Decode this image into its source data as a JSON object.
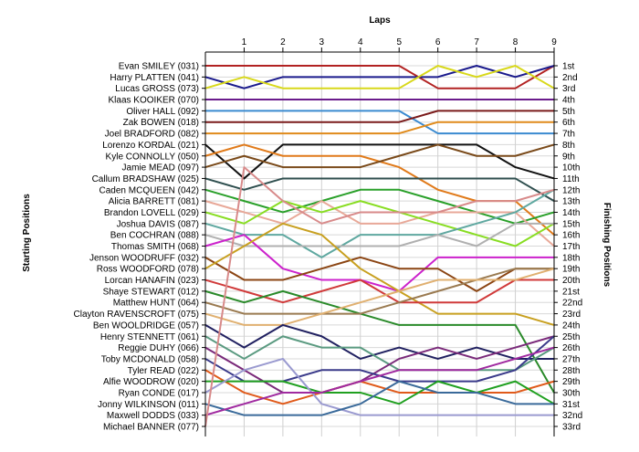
{
  "chart_data": {
    "type": "line",
    "title": "",
    "x_axis_title": "Laps",
    "y_axis_left_title": "Starting Positions",
    "y_axis_right_title": "Finishing Positions",
    "laps": [
      "1",
      "2",
      "3",
      "4",
      "5",
      "6",
      "7",
      "8",
      "9"
    ],
    "x_range": [
      0,
      9
    ],
    "position_range": [
      1,
      33
    ],
    "grid": true,
    "finishing_labels": [
      "1st",
      "2nd",
      "3rd",
      "4th",
      "5th",
      "6th",
      "7th",
      "8th",
      "9th",
      "10th",
      "11th",
      "12th",
      "13th",
      "14th",
      "15th",
      "16th",
      "17th",
      "18th",
      "19th",
      "20th",
      "21st",
      "22nd",
      "23rd",
      "24th",
      "25th",
      "26th",
      "27th",
      "28th",
      "29th",
      "30th",
      "31st",
      "32nd",
      "33rd"
    ],
    "series": [
      {
        "name": "Evan SMILEY (031)",
        "color": "#b22222",
        "positions": [
          1,
          1,
          1,
          1,
          1,
          1,
          3,
          3,
          3,
          1
        ]
      },
      {
        "name": "Harry PLATTEN (041)",
        "color": "#1a1a8c",
        "positions": [
          2,
          3,
          2,
          2,
          2,
          2,
          2,
          1,
          2,
          1
        ]
      },
      {
        "name": "Lucas GROSS (073)",
        "color": "#d8d81a",
        "positions": [
          3,
          2,
          3,
          3,
          3,
          3,
          1,
          2,
          1,
          3
        ]
      },
      {
        "name": "Klaas KOOIKER (070)",
        "color": "#6a1b8c",
        "positions": [
          4,
          4,
          4,
          4,
          4,
          4,
          4,
          4,
          4,
          4
        ]
      },
      {
        "name": "Oliver HALL (092)",
        "color": "#3a8ad0",
        "positions": [
          5,
          5,
          5,
          5,
          5,
          5,
          7,
          7,
          7,
          7
        ]
      },
      {
        "name": "Zak BOWEN (018)",
        "color": "#7a1a1a",
        "positions": [
          6,
          6,
          6,
          6,
          6,
          6,
          5,
          5,
          5,
          5
        ]
      },
      {
        "name": "Joel BRADFORD (082)",
        "color": "#e08a1a",
        "positions": [
          7,
          7,
          7,
          7,
          7,
          7,
          6,
          6,
          6,
          6
        ]
      },
      {
        "name": "Lorenzo KORDAL (021)",
        "color": "#111111",
        "positions": [
          8,
          11,
          8,
          8,
          8,
          8,
          8,
          8,
          10,
          11
        ]
      },
      {
        "name": "Kyle CONNOLLY (050)",
        "color": "#e07a1a",
        "positions": [
          9,
          8,
          9,
          9,
          9,
          10,
          12,
          13,
          13,
          16
        ]
      },
      {
        "name": "Jamie MEAD (097)",
        "color": "#7a4a1a",
        "positions": [
          10,
          9,
          10,
          10,
          10,
          9,
          8,
          9,
          9,
          8
        ]
      },
      {
        "name": "Callum BRADSHAW (025)",
        "color": "#2f4f4f",
        "positions": [
          11,
          12,
          11,
          11,
          11,
          11,
          11,
          11,
          11,
          13
        ]
      },
      {
        "name": "Caden MCQUEEN (042)",
        "color": "#2aa02a",
        "positions": [
          12,
          13,
          14,
          13,
          12,
          12,
          13,
          14,
          15,
          14
        ]
      },
      {
        "name": "Alicia BARRETT (081)",
        "color": "#e8a898",
        "positions": [
          13,
          14,
          15,
          13,
          15,
          15,
          14,
          14,
          14,
          17
        ]
      },
      {
        "name": "Brandon LOVELL (029)",
        "color": "#88dd22",
        "positions": [
          14,
          15,
          13,
          14,
          13,
          14,
          15,
          16,
          17,
          15
        ]
      },
      {
        "name": "Joshua DAVIS (087)",
        "color": "#5fa8a0",
        "positions": [
          15,
          16,
          16,
          18,
          16,
          16,
          16,
          15,
          14,
          12
        ]
      },
      {
        "name": "Ben COCHRAN (088)",
        "color": "#b0b0b0",
        "positions": [
          16,
          17,
          17,
          17,
          17,
          17,
          16,
          17,
          15,
          15
        ]
      },
      {
        "name": "Thomas SMITH (068)",
        "color": "#cc22cc",
        "positions": [
          17,
          16,
          19,
          20,
          20,
          21,
          18,
          18,
          18,
          18
        ]
      },
      {
        "name": "Jenson WOODRUFF (032)",
        "color": "#8b4513",
        "positions": [
          18,
          20,
          20,
          19,
          18,
          19,
          19,
          21,
          19,
          19
        ]
      },
      {
        "name": "Ross WOODFORD (078)",
        "color": "#c8a020",
        "positions": [
          19,
          17,
          15,
          16,
          19,
          21,
          23,
          23,
          23,
          24
        ]
      },
      {
        "name": "Lorcan HANAFIN (023)",
        "color": "#d03a3a",
        "positions": [
          20,
          21,
          22,
          21,
          20,
          22,
          22,
          22,
          20,
          20
        ]
      },
      {
        "name": "Shaye STEWART (012)",
        "color": "#2a8a2a",
        "positions": [
          21,
          22,
          21,
          22,
          23,
          24,
          24,
          24,
          24,
          30
        ]
      },
      {
        "name": "Matthew HUNT (064)",
        "color": "#9a7a50",
        "positions": [
          22,
          23,
          23,
          23,
          23,
          22,
          21,
          20,
          19,
          19
        ]
      },
      {
        "name": "Clayton RAVENSCROFT (075)",
        "color": "#e0b070",
        "positions": [
          23,
          24,
          24,
          23,
          22,
          21,
          20,
          20,
          20,
          19
        ]
      },
      {
        "name": "Ben WOOLDRIDGE (057)",
        "color": "#202060",
        "positions": [
          24,
          26,
          24,
          25,
          27,
          26,
          27,
          26,
          27,
          27
        ]
      },
      {
        "name": "Henry STENNETT (061)",
        "color": "#5a9a80",
        "positions": [
          25,
          27,
          25,
          26,
          26,
          28,
          28,
          28,
          28,
          26
        ]
      },
      {
        "name": "Reggie DUHY (066)",
        "color": "#7a2a7a",
        "positions": [
          26,
          28,
          30,
          30,
          29,
          27,
          26,
          27,
          26,
          25
        ]
      },
      {
        "name": "Toby MCDONALD (058)",
        "color": "#3a3a8a",
        "positions": [
          27,
          29,
          29,
          28,
          28,
          29,
          29,
          29,
          28,
          25
        ]
      },
      {
        "name": "Tyler READ (022)",
        "color": "#e05a1a",
        "positions": [
          28,
          30,
          31,
          30,
          29,
          30,
          30,
          30,
          30,
          29
        ]
      },
      {
        "name": "Alfie WOODROW (020)",
        "color": "#20a020",
        "positions": [
          29,
          29,
          29,
          30,
          30,
          31,
          29,
          30,
          29,
          31
        ]
      },
      {
        "name": "Ryan CONDE (017)",
        "color": "#9a9ad0",
        "positions": [
          30,
          28,
          27,
          31,
          32,
          32,
          32,
          32,
          32,
          32
        ]
      },
      {
        "name": "Jonny WILKINSON (011)",
        "color": "#3a6a9a",
        "positions": [
          31,
          32,
          32,
          32,
          31,
          29,
          30,
          30,
          31,
          31
        ]
      },
      {
        "name": "Maxwell DODDS (033)",
        "color": "#a02aa0",
        "positions": [
          32,
          31,
          30,
          30,
          29,
          28,
          28,
          28,
          27,
          26
        ]
      },
      {
        "name": "Michael BANNER (077)",
        "color": "#d88a8a",
        "positions": [
          33,
          10,
          13,
          15,
          14,
          14,
          14,
          13,
          13,
          12
        ]
      }
    ]
  }
}
